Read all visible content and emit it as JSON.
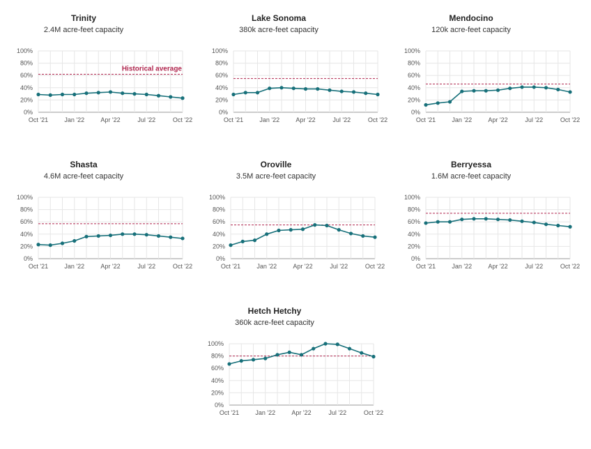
{
  "colors": {
    "series": "#17707a",
    "average": "#b0264e",
    "grid": "#e6e6e6",
    "axis": "#999999"
  },
  "chart_data": [
    {
      "type": "line",
      "title": "Trinity",
      "subtitle": "2.4M acre-feet capacity",
      "xlabel": "",
      "ylabel": "",
      "ylim": [
        0,
        100
      ],
      "ytick_labels": [
        "0%",
        "20%",
        "40%",
        "60%",
        "80%",
        "100%"
      ],
      "xtick_labels": [
        "Oct '21",
        "Jan '22",
        "Apr '22",
        "Jul '22",
        "Oct '22"
      ],
      "historical_average": 62,
      "historical_average_label": "Historical average",
      "values": [
        29,
        28,
        29,
        29,
        31,
        32,
        33,
        31,
        30,
        29,
        27,
        25,
        23
      ]
    },
    {
      "type": "line",
      "title": "Lake Sonoma",
      "subtitle": "380k acre-feet capacity",
      "xlabel": "",
      "ylabel": "",
      "ylim": [
        0,
        100
      ],
      "ytick_labels": [
        "0%",
        "20%",
        "40%",
        "60%",
        "80%",
        "100%"
      ],
      "xtick_labels": [
        "Oct '21",
        "Jan '22",
        "Apr '22",
        "Jul '22",
        "Oct '22"
      ],
      "historical_average": 55,
      "values": [
        29,
        32,
        32,
        39,
        40,
        39,
        38,
        38,
        36,
        34,
        33,
        31,
        29
      ]
    },
    {
      "type": "line",
      "title": "Mendocino",
      "subtitle": "120k acre-feet capacity",
      "xlabel": "",
      "ylabel": "",
      "ylim": [
        0,
        100
      ],
      "ytick_labels": [
        "0%",
        "20%",
        "40%",
        "60%",
        "80%",
        "100%"
      ],
      "xtick_labels": [
        "Oct '21",
        "Jan '22",
        "Apr '22",
        "Jul '22",
        "Oct '22"
      ],
      "historical_average": 46,
      "values": [
        12,
        15,
        17,
        34,
        35,
        35,
        36,
        39,
        41,
        41,
        40,
        37,
        33
      ]
    },
    {
      "type": "line",
      "title": "Shasta",
      "subtitle": "4.6M acre-feet capacity",
      "xlabel": "",
      "ylabel": "",
      "ylim": [
        0,
        100
      ],
      "ytick_labels": [
        "0%",
        "20%",
        "40%",
        "60%",
        "80%",
        "100%"
      ],
      "xtick_labels": [
        "Oct '21",
        "Jan '22",
        "Apr '22",
        "Jul '22",
        "Oct '22"
      ],
      "historical_average": 57,
      "values": [
        23,
        22,
        25,
        29,
        36,
        37,
        38,
        40,
        40,
        39,
        37,
        35,
        33
      ]
    },
    {
      "type": "line",
      "title": "Oroville",
      "subtitle": "3.5M acre-feet capacity",
      "xlabel": "",
      "ylabel": "",
      "ylim": [
        0,
        100
      ],
      "ytick_labels": [
        "0%",
        "20%",
        "40%",
        "60%",
        "80%",
        "100%"
      ],
      "xtick_labels": [
        "Oct '21",
        "Jan '22",
        "Apr '22",
        "Jul '22",
        "Oct '22"
      ],
      "historical_average": 55,
      "values": [
        22,
        28,
        30,
        40,
        46,
        47,
        48,
        55,
        54,
        47,
        41,
        37,
        35
      ]
    },
    {
      "type": "line",
      "title": "Berryessa",
      "subtitle": "1.6M acre-feet capacity",
      "xlabel": "",
      "ylabel": "",
      "ylim": [
        0,
        100
      ],
      "ytick_labels": [
        "0%",
        "20%",
        "40%",
        "60%",
        "80%",
        "100%"
      ],
      "xtick_labels": [
        "Oct '21",
        "Jan '22",
        "Apr '22",
        "Jul '22",
        "Oct '22"
      ],
      "historical_average": 74,
      "values": [
        58,
        60,
        60,
        64,
        65,
        65,
        64,
        63,
        61,
        59,
        56,
        54,
        52
      ]
    },
    {
      "type": "line",
      "title": "Hetch Hetchy",
      "subtitle": "360k acre-feet capacity",
      "xlabel": "",
      "ylabel": "",
      "ylim": [
        0,
        100
      ],
      "ytick_labels": [
        "0%",
        "20%",
        "40%",
        "60%",
        "80%",
        "100%"
      ],
      "xtick_labels": [
        "Oct '21",
        "Jan '22",
        "Apr '22",
        "Jul '22",
        "Oct '22"
      ],
      "historical_average": 80,
      "values": [
        67,
        72,
        74,
        76,
        82,
        86,
        82,
        92,
        100,
        99,
        92,
        85,
        79
      ]
    }
  ]
}
